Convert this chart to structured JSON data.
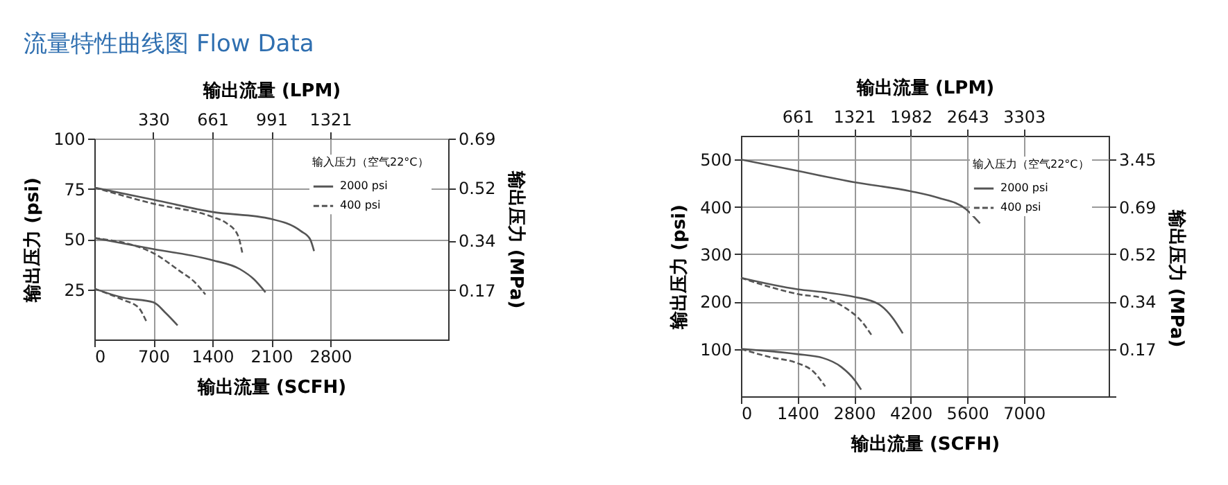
{
  "chart_data": [
    {
      "type": "line",
      "title": "流量特性曲线图 Flow Data",
      "xlabel": "输出流量 (SCFH)",
      "x2label": "输出流量 (LPM)",
      "ylabel": "输出压力 (psi)",
      "y2label": "输出压力 (MPa)",
      "legend_title": "输入压力（空气22°C）",
      "legend": "top right",
      "grid": true,
      "xlim": [
        0,
        4200
      ],
      "xticks": [
        0,
        700,
        1400,
        2100,
        2800
      ],
      "x2lim": [
        0,
        1982
      ],
      "x2ticks": [
        330,
        661,
        991,
        1321
      ],
      "ylim": [
        0,
        100
      ],
      "yticks": [
        25,
        50,
        75,
        100
      ],
      "y2lim": [
        0,
        0.69
      ],
      "y2ticks": [
        0.17,
        0.34,
        0.52,
        0.69
      ],
      "series": [
        {
          "name": "2000 psi",
          "color": "#555555",
          "line_style": "solid",
          "x": [
            0,
            700,
            1400,
            2100,
            2450,
            2560,
            2608
          ],
          "values": [
            75.6,
            69.6,
            63.5,
            60,
            54,
            50,
            44
          ]
        },
        {
          "name": "400 psi",
          "color": "#555555",
          "line_style": "dashed",
          "x": [
            0,
            700,
            1400,
            1565,
            1702,
            1757
          ],
          "values": [
            75.6,
            67.6,
            61,
            58,
            52,
            43
          ]
        },
        {
          "color": "#555555",
          "line_style": "solid",
          "x": [
            0,
            700,
            1400,
            1729,
            1894,
            2031
          ],
          "values": [
            50.5,
            45,
            39.5,
            35,
            30,
            23.5
          ]
        },
        {
          "color": "#555555",
          "line_style": "dashed",
          "x": [
            0,
            700,
            1016,
            1180,
            1318
          ],
          "values": [
            50.5,
            43,
            34,
            29,
            22.4
          ]
        },
        {
          "color": "#555555",
          "line_style": "solid",
          "x": [
            0,
            346,
            700,
            851,
            988
          ],
          "values": [
            25.3,
            20.8,
            18.5,
            13,
            7
          ]
        },
        {
          "color": "#555555",
          "line_style": "dashed",
          "x": [
            0,
            346,
            522,
            620
          ],
          "values": [
            25.3,
            19.6,
            16,
            8.7
          ]
        }
      ]
    },
    {
      "type": "line",
      "xlabel": "输出流量 (SCFH)",
      "x2label": "输出流量 (LPM)",
      "ylabel": "输出压力 (psi)",
      "y2label": "输出压力 (MPa)",
      "legend_title": "输入压力（空气22°C）",
      "legend": "top right",
      "grid": true,
      "xlim": [
        0,
        9100
      ],
      "xticks": [
        0,
        1400,
        2800,
        4200,
        5600,
        7000
      ],
      "x2lim": [
        0,
        4294
      ],
      "x2ticks": [
        661,
        1321,
        1982,
        2643,
        3303
      ],
      "ylim": [
        0,
        550
      ],
      "yticks": [
        100,
        200,
        300,
        400,
        500
      ],
      "y2_categories": [
        "3.45",
        "0.69",
        "0.52",
        "0.34",
        "0.17",
        null
      ],
      "series": [
        {
          "name": "2000 psi",
          "color": "#555555",
          "line_style": "solid",
          "x": [
            0,
            1396,
            2803,
            4198,
            4885,
            5571,
            5914
          ],
          "values": [
            500,
            476,
            452,
            433,
            419,
            395,
            365
          ]
        },
        {
          "color": "#555555",
          "line_style": "solid",
          "x": [
            0,
            1396,
            2139,
            2803,
            3398,
            3741,
            4004
          ],
          "values": [
            250,
            226,
            219,
            210,
            195,
            167,
            133
          ]
        },
        {
          "name": "400 psi",
          "color": "#555555",
          "line_style": "dashed",
          "x": [
            0,
            1396,
            2139,
            2597,
            2997,
            3226
          ],
          "values": [
            250,
            216,
            205,
            186,
            157,
            130
          ]
        },
        {
          "color": "#555555",
          "line_style": "solid",
          "x": [
            0,
            1396,
            2025,
            2482,
            2826,
            2974
          ],
          "values": [
            100,
            89,
            81,
            62,
            33,
            14
          ]
        },
        {
          "color": "#555555",
          "line_style": "dashed",
          "x": [
            0,
            709,
            1396,
            1796,
            2082
          ],
          "values": [
            100,
            83,
            70,
            52,
            21
          ]
        }
      ]
    }
  ]
}
